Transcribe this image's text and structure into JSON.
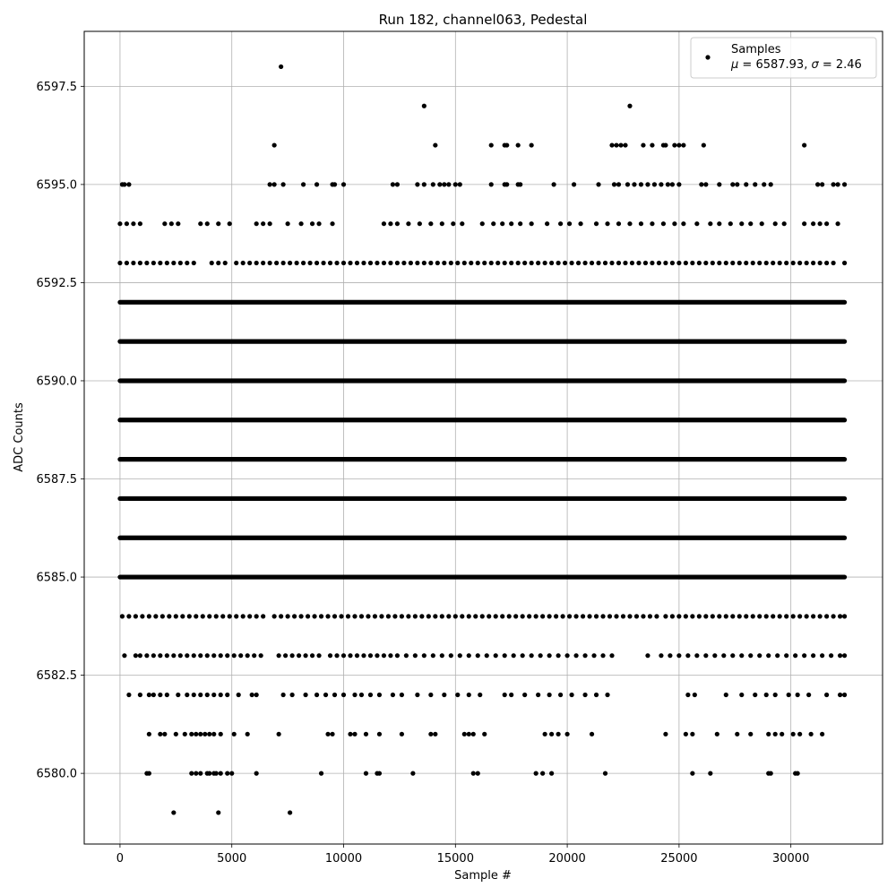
{
  "chart_data": {
    "type": "scatter",
    "title": "Run 182, channel063, Pedestal",
    "xlabel": "Sample #",
    "ylabel": "ADC Counts",
    "xlim": [
      -1600,
      34100
    ],
    "ylim": [
      6578.2,
      6598.9
    ],
    "xticks": [
      0,
      5000,
      10000,
      15000,
      20000,
      25000,
      30000
    ],
    "xtick_labels": [
      "0",
      "5000",
      "10000",
      "15000",
      "20000",
      "25000",
      "30000"
    ],
    "yticks": [
      6580.0,
      6582.5,
      6585.0,
      6587.5,
      6590.0,
      6592.5,
      6595.0,
      6597.5
    ],
    "ytick_labels": [
      "6580.0",
      "6582.5",
      "6585.0",
      "6587.5",
      "6590.0",
      "6592.5",
      "6595.0",
      "6597.5"
    ],
    "grid": true,
    "legend_position": "top-right",
    "point_color": "#000000",
    "x_range": [
      0,
      32400
    ],
    "series": [
      {
        "name": "Samples",
        "annotation": "μ = 6587.93, σ = 2.46",
        "annotation_mu": "μ",
        "annotation_mid": " = 6587.93, ",
        "annotation_sigma": "σ",
        "annotation_end": " = 2.46",
        "levels": [
          {
            "y": 6579,
            "x": [
              2400,
              4400,
              7600
            ]
          },
          {
            "y": 6580,
            "x": [
              1200,
              1300,
              3200,
              3400,
              3600,
              3900,
              4000,
              4200,
              4300,
              4500,
              4800,
              5000,
              6100,
              9000,
              11000,
              11500,
              11600,
              13100,
              15800,
              16000,
              18600,
              18900,
              19300,
              21700,
              25600,
              26400,
              29000,
              29100,
              30200,
              30300
            ]
          },
          {
            "y": 6581,
            "x": [
              1300,
              1800,
              2000,
              2500,
              2900,
              3200,
              3400,
              3600,
              3800,
              4000,
              4200,
              4500,
              5100,
              5700,
              7100,
              9300,
              9500,
              10300,
              10500,
              11000,
              11600,
              12600,
              13900,
              14100,
              15400,
              15600,
              15800,
              16300,
              19000,
              19300,
              19600,
              20000,
              21100,
              24400,
              25300,
              25600,
              26700,
              27600,
              28200,
              29000,
              29300,
              29600,
              30100,
              30400,
              30900,
              31400
            ]
          },
          {
            "y": 6582,
            "x": [
              400,
              900,
              1300,
              1500,
              1800,
              2100,
              2600,
              3000,
              3300,
              3600,
              3900,
              4200,
              4500,
              4800,
              5300,
              5900,
              6100,
              7300,
              7700,
              8300,
              8800,
              9200,
              9600,
              10000,
              10500,
              10800,
              11200,
              11600,
              12200,
              12600,
              13300,
              13900,
              14500,
              15100,
              15600,
              16100,
              17200,
              17500,
              18100,
              18700,
              19200,
              19700,
              20200,
              20800,
              21300,
              21800,
              25400,
              25700,
              27100,
              27800,
              28400,
              28900,
              29300,
              29900,
              30300,
              30800,
              31600,
              32200,
              32400
            ]
          },
          {
            "y": 6583,
            "x": [
              200,
              700,
              900,
              1200,
              1500,
              1800,
              2100,
              2400,
              2700,
              3000,
              3300,
              3600,
              3900,
              4200,
              4500,
              4800,
              5100,
              5400,
              5700,
              6000,
              6300,
              7100,
              7400,
              7700,
              8000,
              8300,
              8600,
              8900,
              9400,
              9700,
              10000,
              10300,
              10600,
              10900,
              11200,
              11500,
              11800,
              12100,
              12400,
              12800,
              13200,
              13600,
              14000,
              14400,
              14800,
              15200,
              15600,
              16000,
              16400,
              16800,
              17200,
              17600,
              18000,
              18400,
              18800,
              19200,
              19600,
              20000,
              20400,
              20800,
              21200,
              21600,
              22000,
              23600,
              24200,
              24600,
              25000,
              25400,
              25800,
              26200,
              26600,
              27000,
              27400,
              27800,
              28200,
              28600,
              29000,
              29400,
              29800,
              30200,
              30600,
              31000,
              31400,
              31800,
              32200,
              32400
            ]
          },
          {
            "y": 6584,
            "x": [
              100,
              400,
              700,
              1000,
              1300,
              1600,
              1900,
              2200,
              2500,
              2800,
              3100,
              3400,
              3700,
              4000,
              4300,
              4600,
              4900,
              5200,
              5500,
              5800,
              6100,
              6400,
              6900,
              7200,
              7500,
              7800,
              8100,
              8400,
              8700,
              9000,
              9300,
              9600,
              9900,
              10200,
              10500,
              10800,
              11100,
              11400,
              11700,
              12000,
              12300,
              12600,
              12900,
              13200,
              13500,
              13800,
              14100,
              14400,
              14700,
              15000,
              15300,
              15600,
              15900,
              16200,
              16500,
              16800,
              17100,
              17400,
              17700,
              18000,
              18300,
              18600,
              18900,
              19200,
              19500,
              19800,
              20100,
              20400,
              20700,
              21000,
              21300,
              21600,
              21900,
              22200,
              22500,
              22800,
              23100,
              23400,
              23700,
              24000,
              24400,
              24700,
              25000,
              25300,
              25600,
              25900,
              26200,
              26500,
              26800,
              27100,
              27400,
              27700,
              28000,
              28300,
              28600,
              28900,
              29200,
              29500,
              29800,
              30100,
              30400,
              30700,
              31000,
              31300,
              31600,
              31900,
              32200,
              32400
            ]
          },
          {
            "y": 6585,
            "dense": true,
            "x": [
              0,
              32400
            ]
          },
          {
            "y": 6586,
            "dense": true,
            "x": [
              0,
              32400
            ]
          },
          {
            "y": 6587,
            "dense": true,
            "x": [
              0,
              32400
            ]
          },
          {
            "y": 6588,
            "dense": true,
            "x": [
              0,
              32400
            ]
          },
          {
            "y": 6589,
            "dense": true,
            "x": [
              0,
              32400
            ]
          },
          {
            "y": 6590,
            "dense": true,
            "x": [
              0,
              32400
            ]
          },
          {
            "y": 6591,
            "dense": true,
            "x": [
              0,
              32400
            ]
          },
          {
            "y": 6592,
            "dense": true,
            "x": [
              0,
              32400
            ]
          },
          {
            "y": 6593,
            "x": [
              0,
              300,
              600,
              900,
              1200,
              1500,
              1800,
              2100,
              2400,
              2700,
              3000,
              3300,
              4100,
              4400,
              4700,
              5200,
              5500,
              5800,
              6100,
              6400,
              6700,
              7000,
              7300,
              7600,
              7900,
              8200,
              8500,
              8800,
              9100,
              9400,
              9700,
              10000,
              10300,
              10600,
              10900,
              11200,
              11500,
              11800,
              12100,
              12400,
              12700,
              13000,
              13300,
              13600,
              13900,
              14200,
              14500,
              14800,
              15100,
              15400,
              15700,
              16000,
              16300,
              16600,
              16900,
              17200,
              17500,
              17800,
              18100,
              18400,
              18700,
              19000,
              19300,
              19600,
              19900,
              20200,
              20500,
              20800,
              21100,
              21400,
              21700,
              22000,
              22300,
              22600,
              22900,
              23200,
              23500,
              23800,
              24100,
              24400,
              24700,
              25000,
              25300,
              25600,
              25900,
              26200,
              26500,
              26800,
              27100,
              27400,
              27700,
              28000,
              28300,
              28600,
              28900,
              29200,
              29500,
              29800,
              30100,
              30400,
              30700,
              31000,
              31300,
              31600,
              31900,
              32400
            ]
          },
          {
            "y": 6594,
            "x": [
              0,
              300,
              600,
              900,
              2000,
              2300,
              2600,
              3600,
              3900,
              4400,
              4900,
              6100,
              6400,
              6700,
              7500,
              8100,
              8600,
              8900,
              9500,
              11800,
              12100,
              12400,
              12900,
              13400,
              13900,
              14400,
              14900,
              15300,
              16200,
              16700,
              17100,
              17500,
              17900,
              18400,
              19100,
              19700,
              20100,
              20600,
              21300,
              21800,
              22300,
              22800,
              23300,
              23800,
              24300,
              24800,
              25200,
              25800,
              26400,
              26800,
              27300,
              27800,
              28200,
              28700,
              29300,
              29700,
              30600,
              31000,
              31300,
              31600,
              32100
            ]
          },
          {
            "y": 6595,
            "x": [
              100,
              200,
              400,
              6700,
              6900,
              7300,
              8200,
              8800,
              9500,
              9600,
              10000,
              12200,
              12400,
              13300,
              13600,
              14000,
              14300,
              14500,
              14700,
              15000,
              15200,
              16600,
              17200,
              17300,
              17800,
              17900,
              19400,
              20300,
              21400,
              22100,
              22300,
              22700,
              23000,
              23300,
              23600,
              23900,
              24200,
              24500,
              24700,
              25000,
              26000,
              26200,
              26800,
              27400,
              27600,
              28000,
              28400,
              28800,
              29100,
              31200,
              31400,
              31900,
              32100,
              32400
            ]
          },
          {
            "y": 6596,
            "x": [
              6900,
              14100,
              16600,
              17200,
              17300,
              17800,
              18400,
              22000,
              22200,
              22400,
              22600,
              23400,
              23800,
              24300,
              24400,
              24800,
              25000,
              25200,
              26100,
              30600
            ]
          },
          {
            "y": 6597,
            "x": [
              13600,
              22800
            ]
          },
          {
            "y": 6598,
            "x": [
              7200
            ]
          }
        ]
      }
    ]
  }
}
